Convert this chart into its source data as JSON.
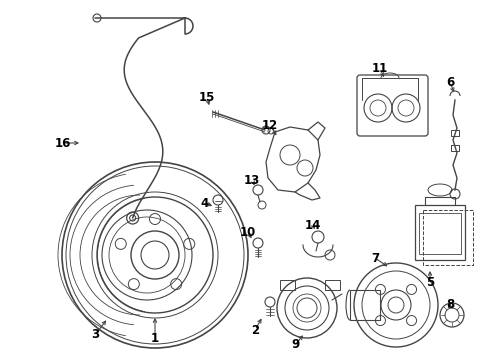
{
  "bg_color": "#ffffff",
  "line_color": "#444444",
  "label_color": "#000000",
  "fig_width": 4.89,
  "fig_height": 3.6,
  "dpi": 100,
  "font_size": 8.5,
  "lw": 0.9
}
